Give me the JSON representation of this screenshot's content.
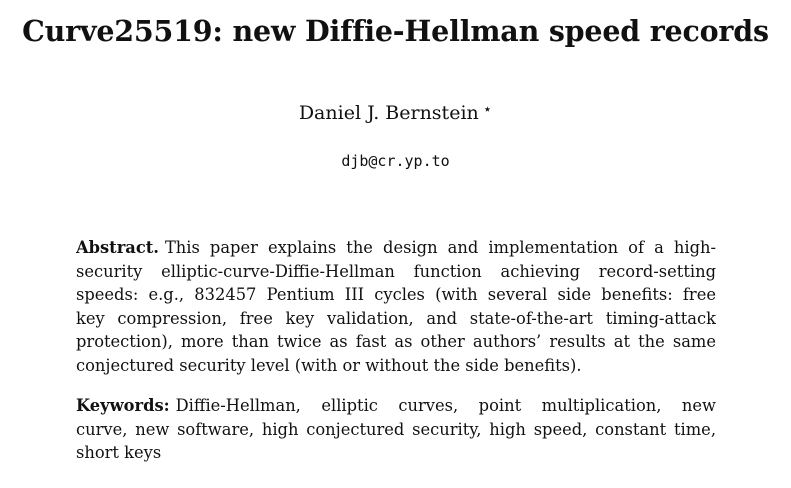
{
  "title": "Curve25519: new Diffie-Hellman speed records",
  "author": {
    "name": "Daniel J. Bernstein",
    "mark": "⋆",
    "email": "djb@cr.yp.to"
  },
  "abstract": {
    "heading": "Abstract.",
    "lines": [
      "This paper explains the design and implementation of a high-",
      "security elliptic-curve-Diffie-Hellman function achieving record-setting",
      "speeds: e.g., 832457 Pentium III cycles (with several side benefits: free",
      "key compression, free key validation, and state-of-the-art timing-attack",
      "protection), more than twice as fast as other authors’ results at the same",
      "conjectured security level (with or without the side benefits)."
    ]
  },
  "keywords": {
    "heading": "Keywords:",
    "lines": [
      "Diffie-Hellman, elliptic curves, point multiplication, new",
      "curve, new software, high conjectured security, high speed, constant time,",
      "short keys"
    ]
  }
}
